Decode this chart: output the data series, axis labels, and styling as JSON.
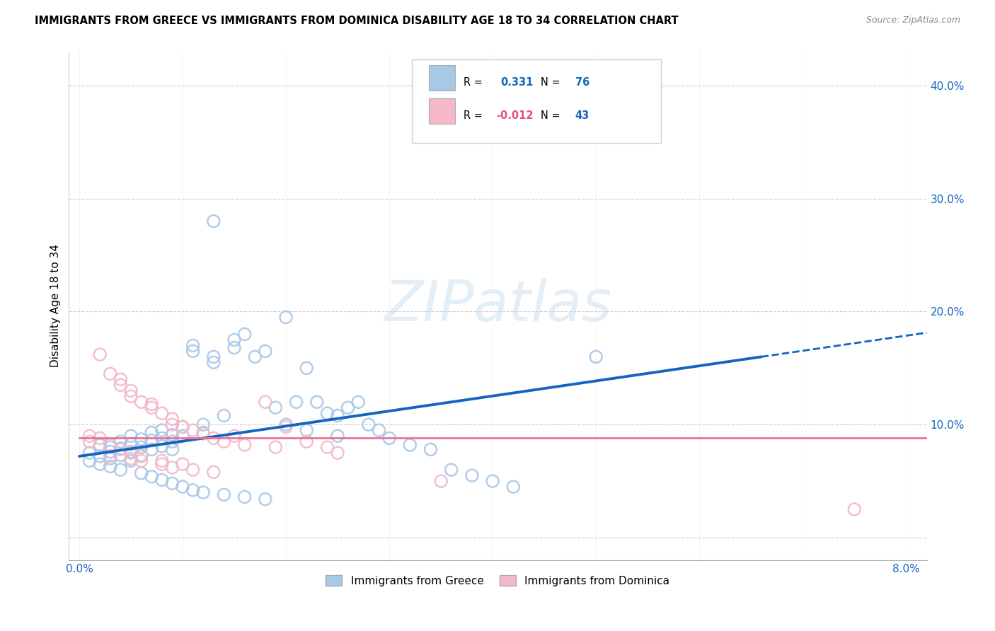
{
  "title": "IMMIGRANTS FROM GREECE VS IMMIGRANTS FROM DOMINICA DISABILITY AGE 18 TO 34 CORRELATION CHART",
  "source": "Source: ZipAtlas.com",
  "ylabel": "Disability Age 18 to 34",
  "xlim": [
    -0.001,
    0.082
  ],
  "ylim": [
    -0.02,
    0.43
  ],
  "xticks": [
    0.0,
    0.01,
    0.02,
    0.03,
    0.04,
    0.05,
    0.06,
    0.07,
    0.08
  ],
  "yticks": [
    0.0,
    0.1,
    0.2,
    0.3,
    0.4
  ],
  "legend_label1": "Immigrants from Greece",
  "legend_label2": "Immigrants from Dominica",
  "r1": 0.331,
  "n1": 76,
  "r2": -0.012,
  "n2": 43,
  "color_greece": "#a8c8e8",
  "color_dominica": "#f4b8c8",
  "trendline_greece_color": "#1565c0",
  "trendline_dominica_color": "#e57399",
  "watermark": "ZIPatlas",
  "greece_x": [
    0.001,
    0.001,
    0.002,
    0.002,
    0.002,
    0.003,
    0.003,
    0.003,
    0.003,
    0.004,
    0.004,
    0.004,
    0.005,
    0.005,
    0.005,
    0.005,
    0.006,
    0.006,
    0.006,
    0.007,
    0.007,
    0.007,
    0.008,
    0.008,
    0.008,
    0.009,
    0.009,
    0.009,
    0.01,
    0.01,
    0.011,
    0.011,
    0.012,
    0.012,
    0.013,
    0.013,
    0.014,
    0.015,
    0.015,
    0.016,
    0.017,
    0.018,
    0.019,
    0.02,
    0.021,
    0.022,
    0.023,
    0.024,
    0.025,
    0.026,
    0.027,
    0.028,
    0.029,
    0.03,
    0.032,
    0.034,
    0.036,
    0.038,
    0.04,
    0.042,
    0.004,
    0.006,
    0.007,
    0.008,
    0.009,
    0.01,
    0.011,
    0.012,
    0.013,
    0.014,
    0.016,
    0.018,
    0.02,
    0.022,
    0.025,
    0.05
  ],
  "greece_y": [
    0.075,
    0.068,
    0.082,
    0.072,
    0.065,
    0.08,
    0.076,
    0.07,
    0.063,
    0.085,
    0.079,
    0.073,
    0.09,
    0.083,
    0.076,
    0.068,
    0.087,
    0.08,
    0.073,
    0.093,
    0.086,
    0.078,
    0.095,
    0.088,
    0.081,
    0.091,
    0.085,
    0.078,
    0.098,
    0.09,
    0.17,
    0.165,
    0.1,
    0.093,
    0.16,
    0.155,
    0.108,
    0.175,
    0.168,
    0.18,
    0.16,
    0.165,
    0.115,
    0.195,
    0.12,
    0.15,
    0.12,
    0.11,
    0.108,
    0.115,
    0.12,
    0.1,
    0.095,
    0.088,
    0.082,
    0.078,
    0.06,
    0.055,
    0.05,
    0.045,
    0.06,
    0.057,
    0.054,
    0.051,
    0.048,
    0.045,
    0.042,
    0.04,
    0.28,
    0.038,
    0.036,
    0.034,
    0.1,
    0.095,
    0.09,
    0.16
  ],
  "dominica_x": [
    0.001,
    0.001,
    0.002,
    0.002,
    0.003,
    0.003,
    0.004,
    0.004,
    0.004,
    0.005,
    0.005,
    0.005,
    0.006,
    0.006,
    0.007,
    0.007,
    0.008,
    0.008,
    0.009,
    0.009,
    0.01,
    0.01,
    0.011,
    0.012,
    0.013,
    0.014,
    0.015,
    0.016,
    0.018,
    0.019,
    0.02,
    0.022,
    0.024,
    0.025,
    0.003,
    0.005,
    0.006,
    0.008,
    0.009,
    0.011,
    0.013,
    0.075,
    0.035
  ],
  "dominica_y": [
    0.09,
    0.085,
    0.162,
    0.088,
    0.145,
    0.082,
    0.14,
    0.135,
    0.078,
    0.13,
    0.125,
    0.075,
    0.12,
    0.072,
    0.115,
    0.118,
    0.11,
    0.068,
    0.105,
    0.1,
    0.098,
    0.065,
    0.095,
    0.092,
    0.088,
    0.085,
    0.09,
    0.082,
    0.12,
    0.08,
    0.098,
    0.085,
    0.08,
    0.075,
    0.072,
    0.07,
    0.068,
    0.065,
    0.062,
    0.06,
    0.058,
    0.025,
    0.05
  ],
  "greece_trend_x0": 0.0,
  "greece_trend_y0": 0.072,
  "greece_trend_x1": 0.066,
  "greece_trend_y1": 0.16,
  "greece_trend_xdash": 0.066,
  "greece_trend_xdash_end": 0.082,
  "dominica_trend_x0": 0.0,
  "dominica_trend_y0": 0.088,
  "dominica_trend_x1": 0.082,
  "dominica_trend_y1": 0.088
}
